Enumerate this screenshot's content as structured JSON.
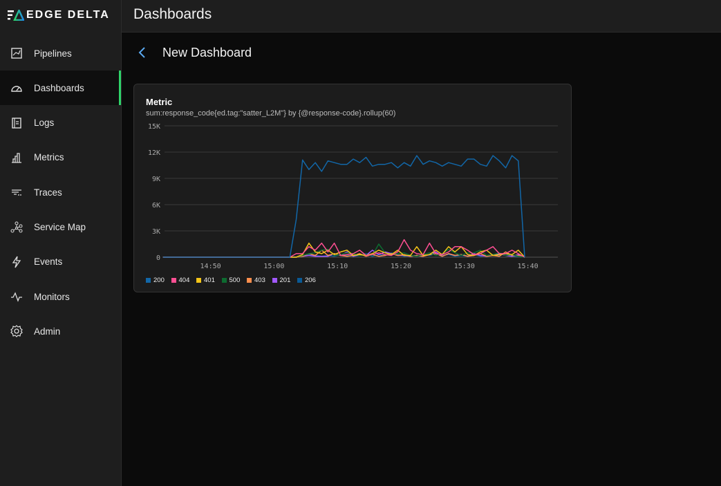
{
  "brand": {
    "name": "EDGE DELTA"
  },
  "header": {
    "title": "Dashboards"
  },
  "sidebar": {
    "items": [
      {
        "label": "Pipelines",
        "icon": "pipelines-icon"
      },
      {
        "label": "Dashboards",
        "icon": "gauge-icon",
        "active": true
      },
      {
        "label": "Logs",
        "icon": "logs-icon"
      },
      {
        "label": "Metrics",
        "icon": "bar-chart-icon"
      },
      {
        "label": "Traces",
        "icon": "traces-icon"
      },
      {
        "label": "Service Map",
        "icon": "service-map-icon"
      },
      {
        "label": "Events",
        "icon": "lightning-icon"
      },
      {
        "label": "Monitors",
        "icon": "pulse-icon"
      },
      {
        "label": "Admin",
        "icon": "gear-icon"
      }
    ]
  },
  "dashboard": {
    "title": "New Dashboard"
  },
  "widget": {
    "title": "Metric",
    "query": "sum:response_code{ed.tag:\"satter_L2M\"} by {@response-code}.rollup(60)"
  },
  "chart_data": {
    "type": "line",
    "title": "Metric",
    "x_start": "14:42:30",
    "x_interval_minutes": 1,
    "leading_zero_points": 20,
    "x_ticks": [
      "14:50",
      "15:00",
      "15:10",
      "15:20",
      "15:30",
      "15:40"
    ],
    "y_ticks": [
      "0",
      "3K",
      "6K",
      "9K",
      "12K",
      "15K"
    ],
    "ylim": [
      0,
      15000
    ],
    "grid": true,
    "legend": "bottom-left",
    "series": [
      {
        "name": "200",
        "color": "#1267a8",
        "values_k": [
          0,
          4.3,
          11.1,
          10,
          10.8,
          9.8,
          11,
          10.8,
          10.6,
          10.6,
          11.2,
          10.8,
          11.4,
          10.4,
          10.6,
          10.6,
          10.8,
          10.2,
          10.8,
          10.4,
          11.6,
          10.6,
          11,
          10.8,
          10.4,
          10.8,
          10.6,
          10.4,
          11.2,
          11.2,
          10.6,
          10.4,
          11.6,
          11,
          10.2,
          11.6,
          11,
          0
        ]
      },
      {
        "name": "404",
        "color": "#ff4f93",
        "values_k": [
          0,
          0.4,
          0.4,
          1.2,
          0.8,
          1.6,
          0.6,
          1.6,
          0.2,
          0.3,
          0.4,
          0.8,
          0.2,
          0.3,
          0.5,
          0.3,
          0.2,
          0.6,
          2,
          0.8,
          0.4,
          0.3,
          1.6,
          0.4,
          0.3,
          0.6,
          1.2,
          1.2,
          0.8,
          0.3,
          0.4,
          0.8,
          1.2,
          0.4,
          0.4,
          0.8,
          0.4,
          0
        ]
      },
      {
        "name": "401",
        "color": "#f5c518",
        "values_k": [
          0,
          0,
          0.3,
          1.6,
          0.6,
          0.4,
          0.8,
          0.3,
          0.6,
          0.8,
          0.2,
          0.3,
          0.2,
          0.4,
          0.8,
          0.5,
          0.3,
          0.8,
          0.2,
          0.2,
          1.2,
          0.2,
          0.3,
          0.8,
          0.3,
          1.2,
          0.6,
          1.2,
          0.3,
          0.2,
          0.6,
          0.8,
          0.2,
          0.3,
          0.4,
          0.3,
          0.8,
          0
        ]
      },
      {
        "name": "500",
        "color": "#0d6b30",
        "values_k": [
          0,
          0,
          0.2,
          0.4,
          0.5,
          0.8,
          0.9,
          0.2,
          0.3,
          0.5,
          0.4,
          0.2,
          0.3,
          0.2,
          1.5,
          0.5,
          0.3,
          0.4,
          0.5,
          0.2,
          0.1,
          0.3,
          0.5,
          0.2,
          0.4,
          0.9,
          0.5,
          0.2,
          0.5,
          0.5,
          0.8,
          0.2,
          0.3,
          0.5,
          0.2,
          0.3,
          0.1,
          0
        ]
      },
      {
        "name": "403",
        "color": "#ff8f4d",
        "values_k": [
          0,
          0,
          0.1,
          0.4,
          0.2,
          0.8,
          0.2,
          0.4,
          0.2,
          0.1,
          0.2,
          0.4,
          0.1,
          0.3,
          0.1,
          0.2,
          0.4,
          0.2,
          0.3,
          0.1,
          0.2,
          0.1,
          0.3,
          0.4,
          0.1,
          0.4,
          0.2,
          0.3,
          0.1,
          0.2,
          0.4,
          0.1,
          0.2,
          0.1,
          0.6,
          0.2,
          0.2,
          0
        ]
      },
      {
        "name": "201",
        "color": "#a259ff",
        "values_k": [
          0,
          0,
          0.1,
          0.2,
          0.1,
          0.1,
          0.1,
          0.4,
          0.2,
          0.6,
          0.1,
          0.3,
          0.2,
          0.8,
          0.3,
          0.6,
          0.4,
          0.2,
          0.2,
          0.1,
          0.2,
          0.1,
          0.3,
          0.6,
          0.1,
          0.4,
          0.2,
          0.3,
          0.1,
          0.4,
          0.2,
          0.1,
          0.3,
          0.4,
          0.2,
          0.1,
          0.3,
          0
        ]
      },
      {
        "name": "206",
        "color": "#0a5a96",
        "values_k": [
          0,
          0,
          0.1,
          0.3,
          0.2,
          0.1,
          0.2,
          0.1,
          0.3,
          0.2,
          0.1,
          0.2,
          0.4,
          0.1,
          0.3,
          0.2,
          0.5,
          0.3,
          0.1,
          0.2,
          0.1,
          0.3,
          0.2,
          0.4,
          0.2,
          0.3,
          0.1,
          0.2,
          0.1,
          0.3,
          0.1,
          0.2,
          0.3,
          0.2,
          0.4,
          0.1,
          0.1,
          0
        ]
      }
    ]
  }
}
